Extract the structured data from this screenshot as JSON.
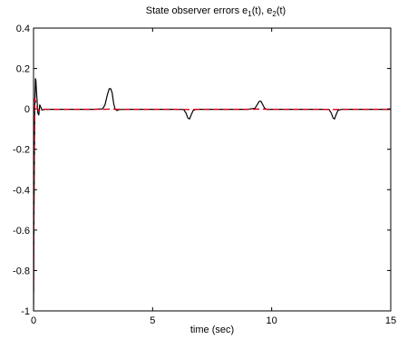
{
  "chart_data": {
    "type": "line",
    "title": {
      "prefix": "State observer errors e",
      "sub1": "1",
      "middle": "(t), e",
      "sub2": "2",
      "suffix": "(t)"
    },
    "xlabel": "time (sec)",
    "ylabel": "",
    "xlim": [
      0,
      15
    ],
    "ylim": [
      -1,
      0.4
    ],
    "xticks": [
      0,
      5,
      10,
      15
    ],
    "xtick_labels": [
      "0",
      "5",
      "10",
      "15"
    ],
    "yticks": [
      -1,
      -0.8,
      -0.6,
      -0.4,
      -0.2,
      0,
      0.2,
      0.4
    ],
    "ytick_labels": [
      "-1",
      "-0.8",
      "-0.6",
      "-0.4",
      "-0.2",
      "0",
      "0.2",
      "0.4"
    ],
    "grid": false,
    "legend": "none",
    "series": [
      {
        "color": "#000000",
        "style": "solid",
        "x": [
          0,
          0.02,
          0.05,
          0.08,
          0.1,
          0.12,
          0.15,
          0.18,
          0.22,
          0.26,
          0.3,
          0.35,
          0.42,
          0.5,
          0.7,
          1.0,
          1.5,
          2.0,
          2.5,
          2.9,
          3.0,
          3.1,
          3.18,
          3.24,
          3.3,
          3.36,
          3.42,
          3.5,
          3.6,
          4.0,
          5.0,
          6.0,
          6.3,
          6.4,
          6.48,
          6.55,
          6.62,
          6.7,
          6.8,
          7.0,
          8.0,
          9.0,
          9.3,
          9.4,
          9.48,
          9.55,
          9.62,
          9.7,
          9.8,
          10.0,
          11.0,
          12.0,
          12.4,
          12.5,
          12.58,
          12.64,
          12.7,
          12.78,
          12.9,
          13.0,
          14.0,
          15.0
        ],
        "y": [
          -1.0,
          -0.5,
          0.0,
          0.15,
          0.14,
          0.09,
          0.04,
          -0.02,
          -0.03,
          0.02,
          0.01,
          -0.005,
          -0.004,
          -0.002,
          -0.002,
          -0.002,
          -0.002,
          -0.002,
          -0.002,
          0.0,
          0.02,
          0.07,
          0.1,
          0.1,
          0.08,
          0.03,
          0.0,
          -0.008,
          -0.003,
          -0.002,
          -0.002,
          -0.002,
          -0.003,
          -0.02,
          -0.045,
          -0.05,
          -0.03,
          -0.008,
          -0.003,
          -0.002,
          -0.002,
          -0.002,
          0.003,
          0.022,
          0.038,
          0.038,
          0.022,
          0.004,
          -0.003,
          -0.002,
          -0.002,
          -0.002,
          -0.002,
          -0.02,
          -0.045,
          -0.05,
          -0.03,
          -0.008,
          -0.003,
          -0.002,
          -0.002,
          -0.002
        ]
      },
      {
        "color": "#e0001a",
        "style": "dashed",
        "x": [
          0,
          0.02,
          0.05,
          0.08,
          0.12,
          0.16,
          0.2,
          0.25,
          0.3,
          0.4,
          0.5,
          1.0,
          2.0,
          3.0,
          3.3,
          3.5,
          4.0,
          5.0,
          6.0,
          6.5,
          7.0,
          8.0,
          9.0,
          9.5,
          10.0,
          11.0,
          12.0,
          12.6,
          13.0,
          14.0,
          15.0
        ],
        "y": [
          -0.9,
          -0.3,
          0.05,
          0.04,
          0.02,
          0.005,
          -0.006,
          -0.008,
          -0.004,
          -0.002,
          -0.002,
          -0.002,
          -0.002,
          -0.002,
          -0.001,
          -0.002,
          -0.002,
          -0.002,
          -0.002,
          -0.003,
          -0.002,
          -0.002,
          -0.002,
          -0.001,
          -0.002,
          -0.002,
          -0.002,
          -0.003,
          -0.002,
          -0.002,
          -0.002
        ]
      }
    ]
  }
}
